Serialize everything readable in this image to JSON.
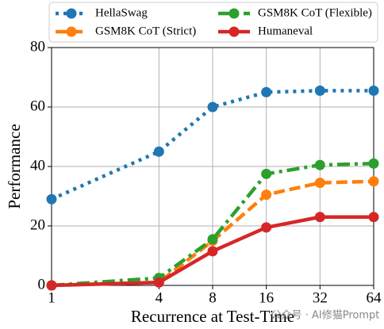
{
  "chart_data": {
    "type": "line",
    "xlabel": "Recurrence at Test-Time",
    "ylabel": "Performance",
    "x": [
      1,
      4,
      8,
      16,
      32,
      64
    ],
    "xscale": "log2",
    "xlim": [
      1,
      64
    ],
    "xticks": [
      1,
      4,
      8,
      16,
      32,
      64
    ],
    "ylim": [
      0,
      80
    ],
    "yticks": [
      0,
      20,
      40,
      60,
      80
    ],
    "grid": true,
    "legend": "upper center",
    "series": [
      {
        "name": "HellaSwag",
        "color": "#1f77b4",
        "linestyle": "dotted",
        "values": [
          29,
          45,
          60,
          65,
          65.5,
          65.5
        ]
      },
      {
        "name": "GSM8K CoT (Strict)",
        "color": "#ff7f0e",
        "linestyle": "dashed",
        "values": [
          0,
          1,
          15,
          30.5,
          34.5,
          35
        ]
      },
      {
        "name": "GSM8K CoT (Flexible)",
        "color": "#2ca02c",
        "linestyle": "dashdot",
        "values": [
          0,
          2.5,
          15.5,
          37.5,
          40.5,
          41
        ]
      },
      {
        "name": "Humaneval",
        "color": "#d62728",
        "linestyle": "solid",
        "values": [
          0,
          1,
          11.5,
          19.5,
          23,
          23
        ]
      }
    ],
    "watermark": "公众号 · AI修猫Prompt"
  }
}
